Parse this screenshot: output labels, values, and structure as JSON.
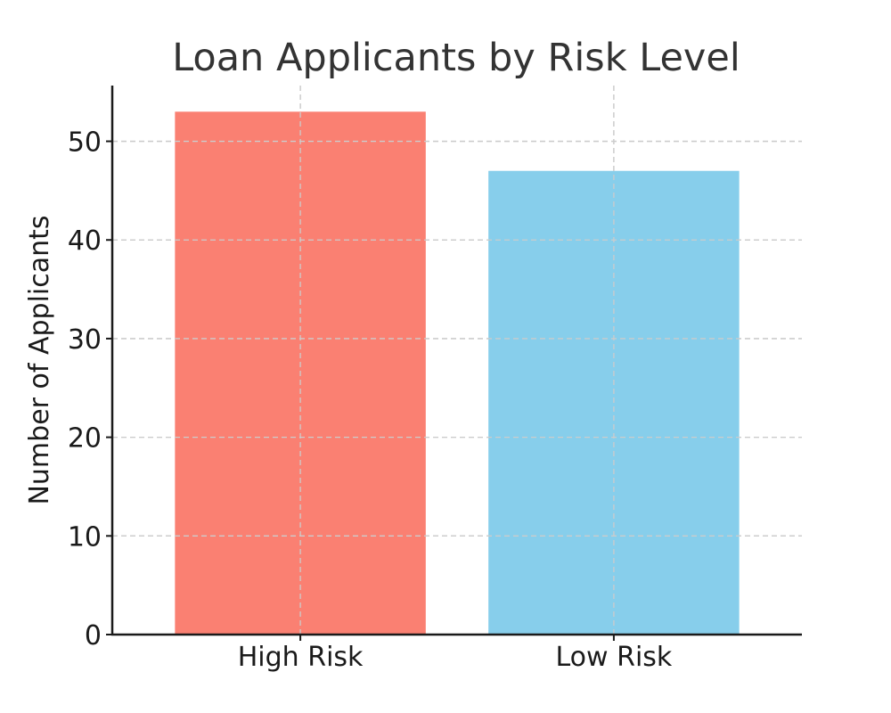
{
  "chart_data": {
    "type": "bar",
    "title": "Loan Applicants by Risk Level",
    "xlabel": "",
    "ylabel": "Number of Applicants",
    "categories": [
      "High Risk",
      "Low Risk"
    ],
    "values": [
      53,
      47
    ],
    "colors": [
      "#fa8072",
      "#87ceeb"
    ],
    "ylim": [
      0,
      55.65
    ],
    "yticks": [
      0,
      10,
      20,
      30,
      40,
      50
    ],
    "grid": true,
    "legend": "none"
  }
}
